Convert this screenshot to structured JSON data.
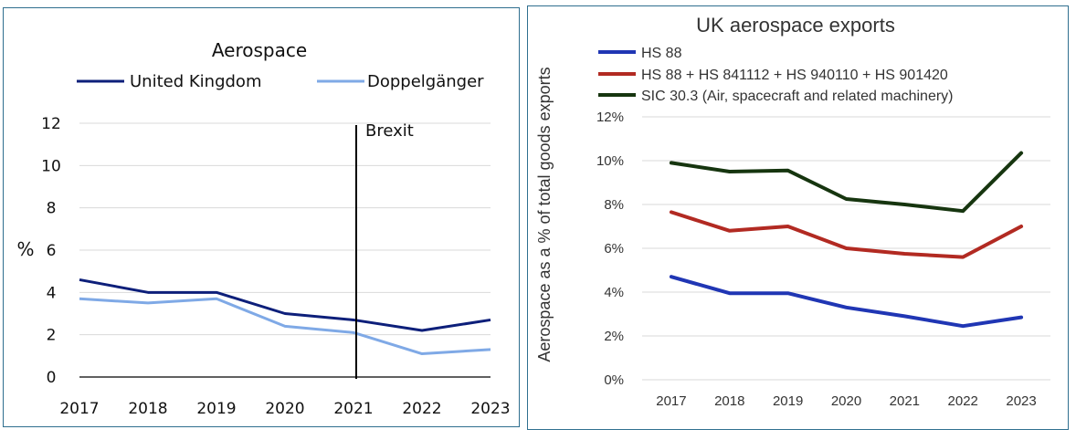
{
  "chart_data": [
    {
      "type": "line",
      "title": "Aerospace",
      "ylabel": "%",
      "xlabel": "",
      "x": [
        "2017",
        "2018",
        "2019",
        "2020",
        "2021",
        "2022",
        "2023"
      ],
      "ylim": [
        0,
        12
      ],
      "yticks": [
        "0",
        "2",
        "4",
        "6",
        "8",
        "10",
        "12"
      ],
      "grid": true,
      "legend": "top",
      "series": [
        {
          "name": "United Kingdom",
          "color": "#0d1f7a",
          "values": [
            4.6,
            4.0,
            4.0,
            3.0,
            2.7,
            2.2,
            2.7
          ]
        },
        {
          "name": "Doppelgänger",
          "color": "#7fa9e6",
          "values": [
            3.7,
            3.5,
            3.7,
            2.4,
            2.1,
            1.1,
            1.3
          ]
        }
      ],
      "annotation": {
        "label": "Brexit",
        "x": "2021"
      }
    },
    {
      "type": "line",
      "title": "UK aerospace exports",
      "ylabel": "Aerospace as a % of total goods exports",
      "xlabel": "",
      "x": [
        "2017",
        "2018",
        "2019",
        "2020",
        "2021",
        "2022",
        "2023"
      ],
      "ylim": [
        0,
        12
      ],
      "yticks": [
        "0%",
        "2%",
        "4%",
        "6%",
        "8%",
        "10%",
        "12%"
      ],
      "grid": true,
      "legend": "top-left",
      "series": [
        {
          "name": "HS 88",
          "color": "#2036b4",
          "values": [
            4.7,
            3.95,
            3.95,
            3.3,
            2.9,
            2.45,
            2.85
          ]
        },
        {
          "name": "HS 88 + HS 841112 + HS 940110 + HS 901420",
          "color": "#b22a22",
          "values": [
            7.65,
            6.8,
            7.0,
            6.0,
            5.75,
            5.6,
            7.0
          ]
        },
        {
          "name": "SIC 30.3 (Air, spacecraft and related machinery)",
          "color": "#16350f",
          "values": [
            9.9,
            9.5,
            9.55,
            8.25,
            8.0,
            7.7,
            10.35
          ]
        }
      ]
    }
  ]
}
